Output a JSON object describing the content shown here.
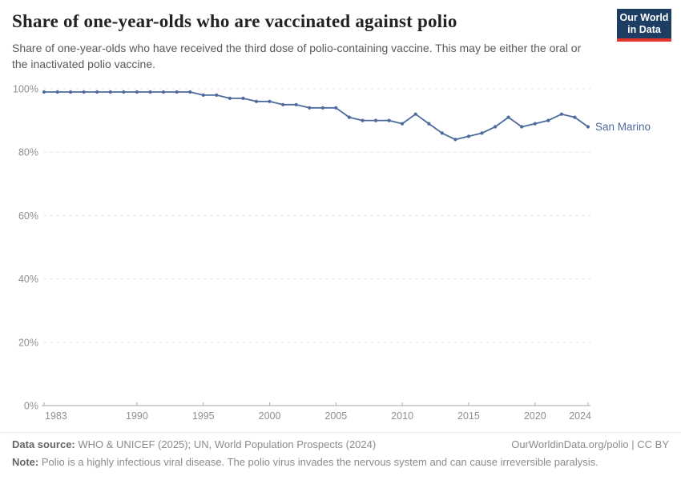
{
  "header": {
    "title": "Share of one-year-olds who are vaccinated against polio",
    "subtitle": "Share of one-year-olds who have received the third dose of polio-containing vaccine. This may be either the oral or the inactivated polio vaccine.",
    "logo": {
      "line1": "Our World",
      "line2": "in Data",
      "bg_color": "#1d3d63",
      "accent_color": "#e5332d"
    }
  },
  "chart_data": {
    "type": "line",
    "title": "Share of one-year-olds who are vaccinated against polio",
    "x": [
      1983,
      1984,
      1985,
      1986,
      1987,
      1988,
      1989,
      1990,
      1991,
      1992,
      1993,
      1994,
      1995,
      1996,
      1997,
      1998,
      1999,
      2000,
      2001,
      2002,
      2003,
      2004,
      2005,
      2006,
      2007,
      2008,
      2009,
      2010,
      2011,
      2012,
      2013,
      2014,
      2015,
      2016,
      2017,
      2018,
      2019,
      2020,
      2021,
      2022,
      2023,
      2024
    ],
    "series": [
      {
        "name": "San Marino",
        "color": "#4c6a9c",
        "values": [
          99,
          99,
          99,
          99,
          99,
          99,
          99,
          99,
          99,
          99,
          99,
          99,
          98,
          98,
          97,
          97,
          96,
          96,
          95,
          95,
          94,
          94,
          94,
          91,
          90,
          90,
          90,
          89,
          92,
          89,
          86,
          84,
          85,
          86,
          88,
          91,
          88,
          89,
          90,
          92,
          91,
          88
        ]
      }
    ],
    "xlabel": "",
    "ylabel": "",
    "ylim": [
      0,
      100
    ],
    "yticks": [
      0,
      20,
      40,
      60,
      80,
      100
    ],
    "ytick_labels": [
      "0%",
      "20%",
      "40%",
      "60%",
      "80%",
      "100%"
    ],
    "xticks": [
      1983,
      1990,
      1995,
      2000,
      2005,
      2010,
      2015,
      2020,
      2024
    ],
    "grid": "horizontal-dashed",
    "legend_position": "end-of-line-label",
    "end_label": "San Marino",
    "colors": {
      "grid": "#dcdcdc",
      "axis": "#a8a8a8",
      "tick_text": "#8e8e8e"
    }
  },
  "footer": {
    "data_source_label": "Data source:",
    "data_source_text": " WHO & UNICEF (2025); UN, World Population Prospects (2024)",
    "link_text": "OurWorldinData.org/polio | CC BY",
    "note_label": "Note:",
    "note_text": " Polio is a highly infectious viral disease. The polio virus invades the nervous system and can cause irreversible paralysis."
  }
}
